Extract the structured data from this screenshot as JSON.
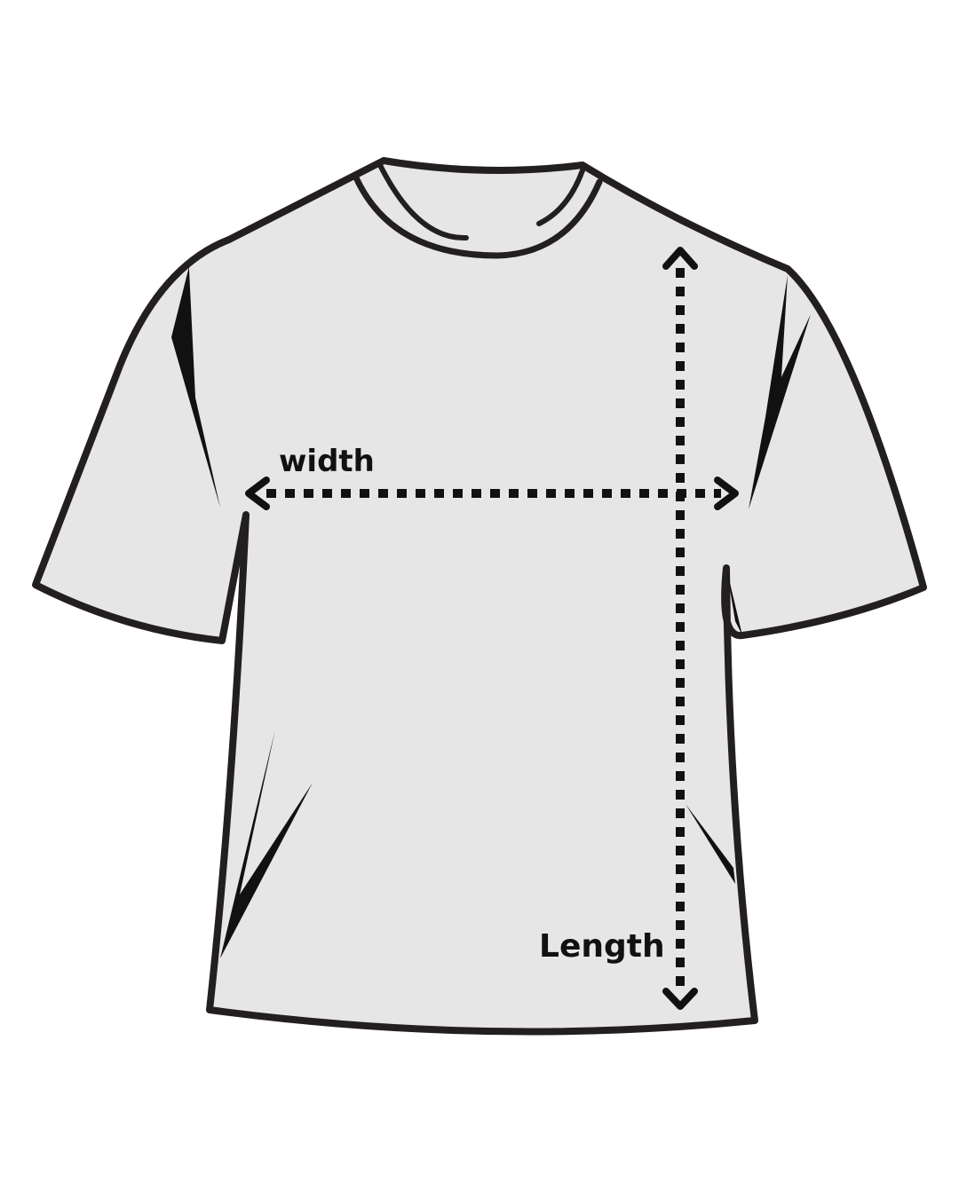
{
  "diagram": {
    "labels": {
      "width": "width",
      "length": "Length"
    },
    "colors": {
      "background": "#ffffff",
      "shirt_fill": "#e6e6e6",
      "outline": "#231f20",
      "arrow": "#111111"
    },
    "icons": [
      "t-shirt-icon",
      "width-arrow-icon",
      "length-arrow-icon"
    ]
  }
}
